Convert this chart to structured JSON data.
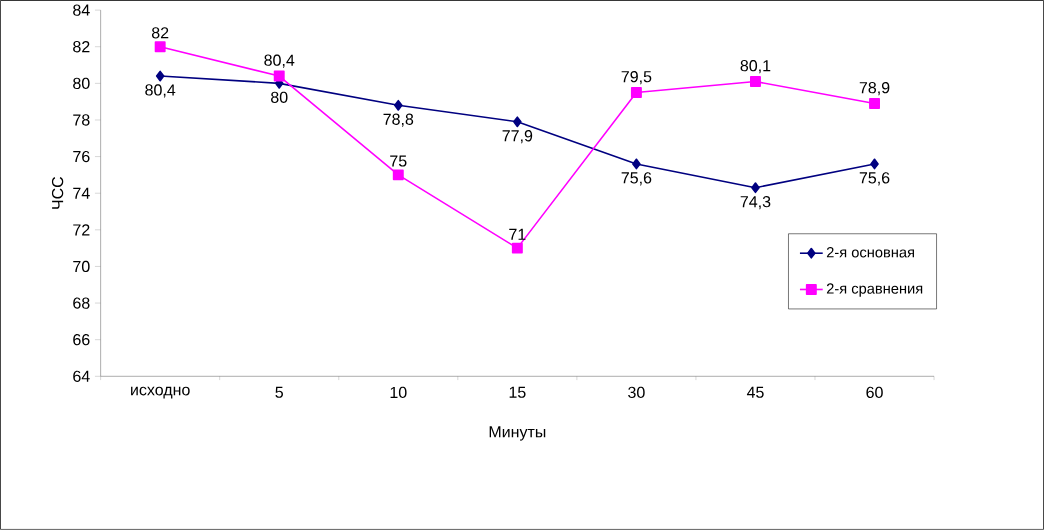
{
  "chart_data": {
    "type": "line",
    "xlabel": "Минуты",
    "ylabel": "ЧСС",
    "categories": [
      "исходно",
      "5",
      "10",
      "15",
      "30",
      "45",
      "60"
    ],
    "series": [
      {
        "name": "2-я основная",
        "color": "#000080",
        "marker": "diamond",
        "values": [
          80.4,
          80,
          78.8,
          77.9,
          75.6,
          74.3,
          75.6
        ],
        "value_labels": [
          "80,4",
          "80",
          "78,8",
          "77,9",
          "75,6",
          "74,3",
          "75,6"
        ]
      },
      {
        "name": "2-я сравнения",
        "color": "#ff00ff",
        "marker": "square",
        "values": [
          82,
          80.4,
          75,
          71,
          79.5,
          80.1,
          78.9
        ],
        "value_labels": [
          "82",
          "80,4",
          "75",
          "71",
          "79,5",
          "80,1",
          "78,9"
        ]
      }
    ],
    "ylim": [
      64,
      84
    ],
    "yticks": [
      64,
      66,
      68,
      70,
      72,
      74,
      76,
      78,
      80,
      82,
      84
    ],
    "grid": false,
    "legend": "right"
  }
}
